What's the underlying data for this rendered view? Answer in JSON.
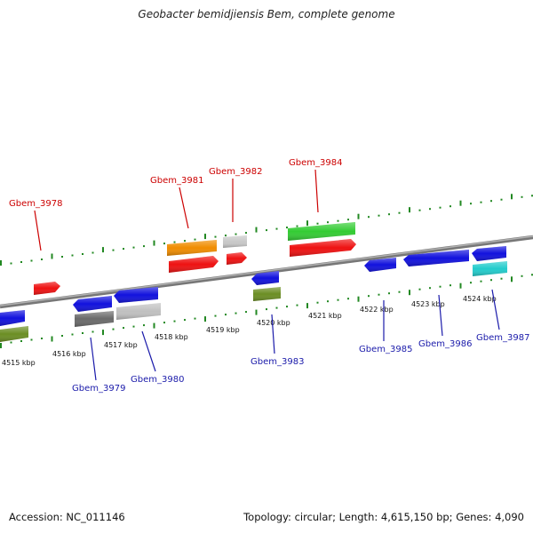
{
  "title": "Geobacter bemidjiensis Bem, complete genome",
  "footer": {
    "accession": "Accession: NC_011146",
    "topology": "Topology: circular; Length: 4,615,150 bp; Genes: 4,090"
  },
  "colors": {
    "forward_label": "#cc0000",
    "reverse_label": "#1a1aaa",
    "backbone": "#888888",
    "tick": "#228822"
  },
  "scale_ticks": [
    "4515 kbp",
    "4516 kbp",
    "4517 kbp",
    "4518 kbp",
    "4519 kbp",
    "4520 kbp",
    "4521 kbp",
    "4522 kbp",
    "4523 kbp",
    "4524 kbp"
  ],
  "forward_genes": [
    {
      "label": "Gbem_3978",
      "color": "#ee1111",
      "strand": "+"
    },
    {
      "label": "Gbem_3981",
      "color": "#ee1111",
      "strand": "+"
    },
    {
      "label": "Gbem_3982",
      "color": "#ee1111",
      "strand": "+"
    },
    {
      "label": "Gbem_3984",
      "color": "#ee1111",
      "strand": "+"
    }
  ],
  "forward_rnas": [
    {
      "label": "",
      "color": "#f08c00"
    },
    {
      "label": "",
      "color": "#c8c8c8"
    },
    {
      "label": "",
      "color": "#33cc33"
    }
  ],
  "reverse_genes": [
    {
      "label": "Gbem_3979",
      "color": "#1111dd",
      "strand": "-"
    },
    {
      "label": "Gbem_3980",
      "color": "#1111dd",
      "strand": "-"
    },
    {
      "label": "Gbem_3983",
      "color": "#1111dd",
      "strand": "-"
    },
    {
      "label": "Gbem_3985",
      "color": "#1111dd",
      "strand": "-"
    },
    {
      "label": "Gbem_3986",
      "color": "#1111dd",
      "strand": "-"
    },
    {
      "label": "Gbem_3987",
      "color": "#1111dd",
      "strand": "-"
    }
  ],
  "reverse_features": [
    {
      "label": "",
      "color": "#6b8e23"
    },
    {
      "label": "",
      "color": "#6a6a6a"
    },
    {
      "label": "",
      "color": "#c0c0c0"
    },
    {
      "label": "",
      "color": "#6b8e23"
    },
    {
      "label": "",
      "color": "#22cccc"
    }
  ]
}
